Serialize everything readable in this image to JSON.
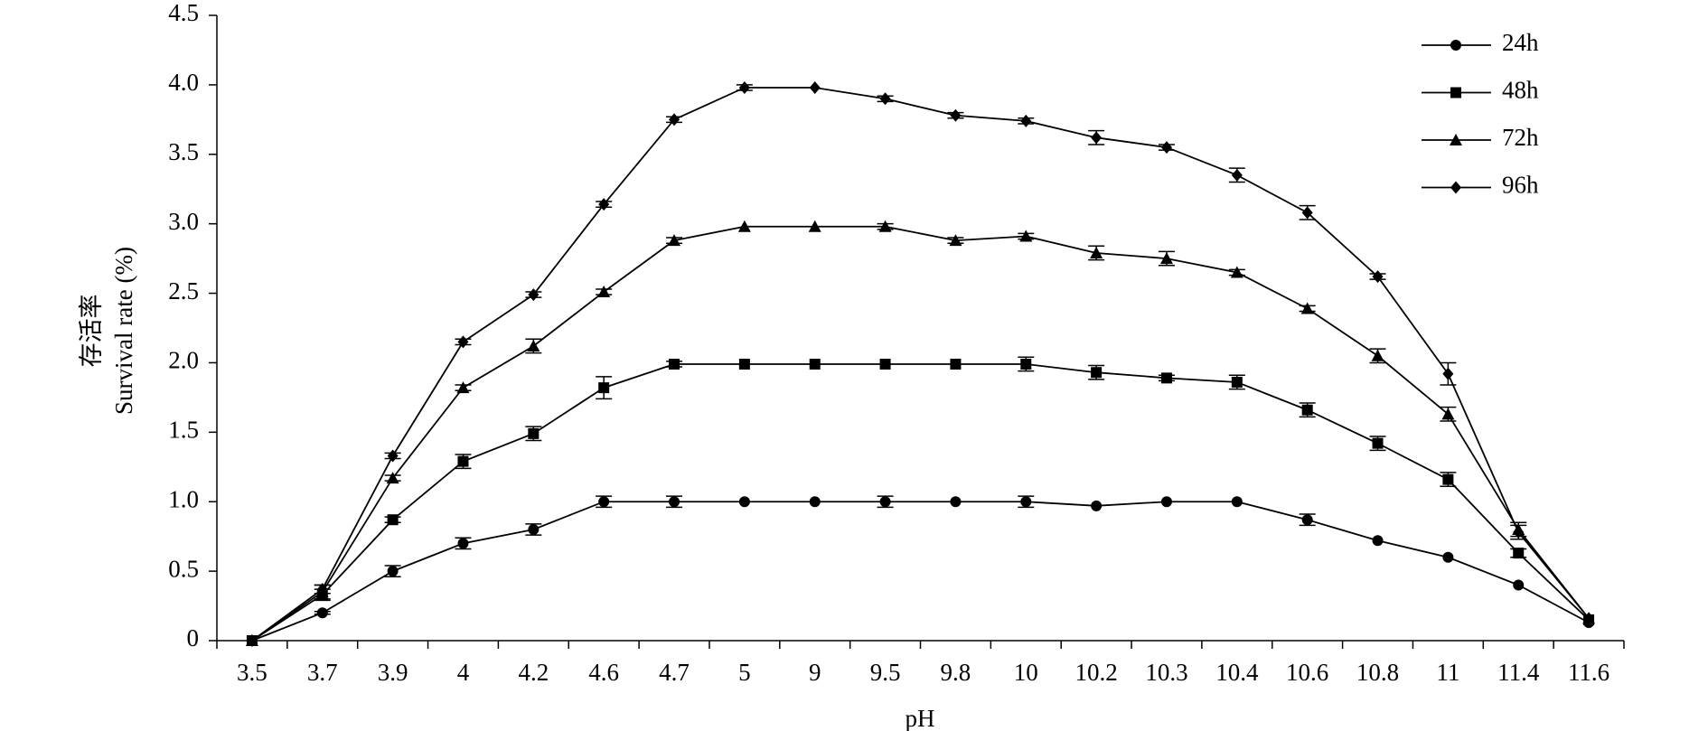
{
  "chart_data": {
    "type": "line",
    "y_label": [
      "存活率",
      "Survival rate (%)"
    ],
    "x_label": "pH",
    "categories": [
      "3.5",
      "3.7",
      "3.9",
      "4",
      "4.2",
      "4.6",
      "4.7",
      "5",
      "9",
      "9.5",
      "9.8",
      "10",
      "10.2",
      "10.3",
      "10.4",
      "10.6",
      "10.8",
      "11",
      "11.4",
      "11.6"
    ],
    "series": [
      {
        "name": "24h",
        "color": "#000000",
        "marker": "circle",
        "values": [
          0,
          0.2,
          0.5,
          0.7,
          0.8,
          1.0,
          1.0,
          1.0,
          1.0,
          1.0,
          1.0,
          1.0,
          0.97,
          1.0,
          1.0,
          0.87,
          0.72,
          0.6,
          0.4,
          0.13
        ],
        "errors": [
          0,
          0.01,
          0.04,
          0.04,
          0.04,
          0.04,
          0.04,
          0,
          0,
          0.04,
          0,
          0.04,
          0,
          0,
          0,
          0.04,
          0,
          0,
          0,
          0
        ]
      },
      {
        "name": "48h",
        "color": "#000000",
        "marker": "square",
        "values": [
          0,
          0.33,
          0.87,
          1.29,
          1.49,
          1.82,
          1.99,
          1.99,
          1.99,
          1.99,
          1.99,
          1.99,
          1.93,
          1.89,
          1.86,
          1.66,
          1.42,
          1.16,
          0.63,
          0.15
        ],
        "errors": [
          0,
          0.04,
          0.02,
          0.05,
          0.05,
          0.08,
          0.02,
          0,
          0,
          0,
          0,
          0.05,
          0.05,
          0.02,
          0.05,
          0.05,
          0.05,
          0.05,
          0.03,
          0
        ]
      },
      {
        "name": "72h",
        "color": "#000000",
        "marker": "triangle",
        "values": [
          0,
          0.35,
          1.17,
          1.82,
          2.12,
          2.51,
          2.88,
          2.98,
          2.98,
          2.98,
          2.88,
          2.91,
          2.79,
          2.75,
          2.65,
          2.39,
          2.05,
          1.63,
          0.8,
          0.16
        ],
        "errors": [
          0,
          0.05,
          0.02,
          0.02,
          0.05,
          0.02,
          0.02,
          0,
          0,
          0.02,
          0.02,
          0.02,
          0.05,
          0.05,
          0.02,
          0.02,
          0.05,
          0.05,
          0.05,
          0
        ]
      },
      {
        "name": "96h",
        "color": "#000000",
        "marker": "diamond",
        "values": [
          0,
          0.37,
          1.33,
          2.15,
          2.49,
          3.14,
          3.75,
          3.98,
          3.98,
          3.9,
          3.78,
          3.74,
          3.62,
          3.55,
          3.35,
          3.08,
          2.62,
          1.92,
          0.78,
          0.16
        ],
        "errors": [
          0,
          0.03,
          0.02,
          0.02,
          0.02,
          0.02,
          0.02,
          0.02,
          0,
          0.02,
          0.02,
          0.02,
          0.05,
          0.02,
          0.05,
          0.05,
          0.02,
          0.08,
          0.05,
          0
        ]
      }
    ],
    "ylim": [
      0,
      4.5
    ],
    "yticks": [
      0,
      0.5,
      {
        "value": 1,
        "label": "1.0"
      },
      1.5,
      {
        "value": 2,
        "label": "2.0"
      },
      2.5,
      {
        "value": 3,
        "label": "3.0"
      },
      3.5,
      {
        "value": 4,
        "label": "4.0"
      },
      4.5
    ],
    "grid": false,
    "legend": "top-right"
  }
}
